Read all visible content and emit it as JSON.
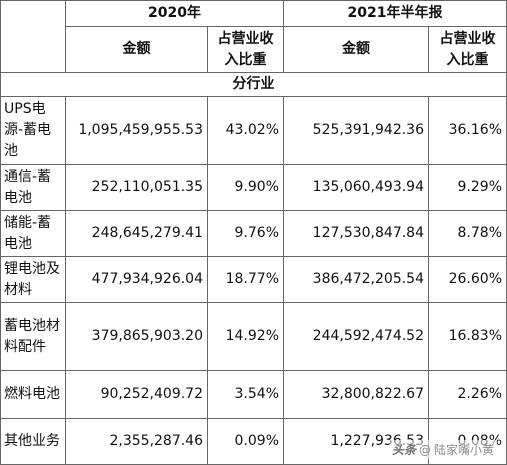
{
  "table": {
    "header": {
      "year_2020": "2020年",
      "year_2021": "2021年半年报",
      "amount": "金额",
      "ratio": "占营业收入比重"
    },
    "section_title": "分行业",
    "rows": [
      {
        "name": "UPS电源-蓄电池",
        "amt_2020": "1,095,459,955.53",
        "pct_2020": "43.02%",
        "amt_2021": "525,391,942.36",
        "pct_2021": "36.16%"
      },
      {
        "name": "通信-蓄电池",
        "amt_2020": "252,110,051.35",
        "pct_2020": "9.90%",
        "amt_2021": "135,060,493.94",
        "pct_2021": "9.29%"
      },
      {
        "name": "储能-蓄电池",
        "amt_2020": "248,645,279.41",
        "pct_2020": "9.76%",
        "amt_2021": "127,530,847.84",
        "pct_2021": "8.78%"
      },
      {
        "name": "锂电池及材料",
        "amt_2020": "477,934,926.04",
        "pct_2020": "18.77%",
        "amt_2021": "386,472,205.54",
        "pct_2021": "26.60%"
      },
      {
        "name": "蓄电池材料配件",
        "amt_2020": "379,865,903.20",
        "pct_2020": "14.92%",
        "amt_2021": "244,592,474.52",
        "pct_2021": "16.83%"
      },
      {
        "name": "燃料电池",
        "amt_2020": "90,252,409.72",
        "pct_2020": "3.54%",
        "amt_2021": "32,800,822.67",
        "pct_2021": "2.26%"
      },
      {
        "name": "其他业务",
        "amt_2020": "2,355,287.46",
        "pct_2020": "0.09%",
        "amt_2021": "1,227,936.53",
        "pct_2021": "0.08%"
      }
    ]
  },
  "watermark": {
    "brand": "头条",
    "handle": "陆家嘴小黄"
  }
}
